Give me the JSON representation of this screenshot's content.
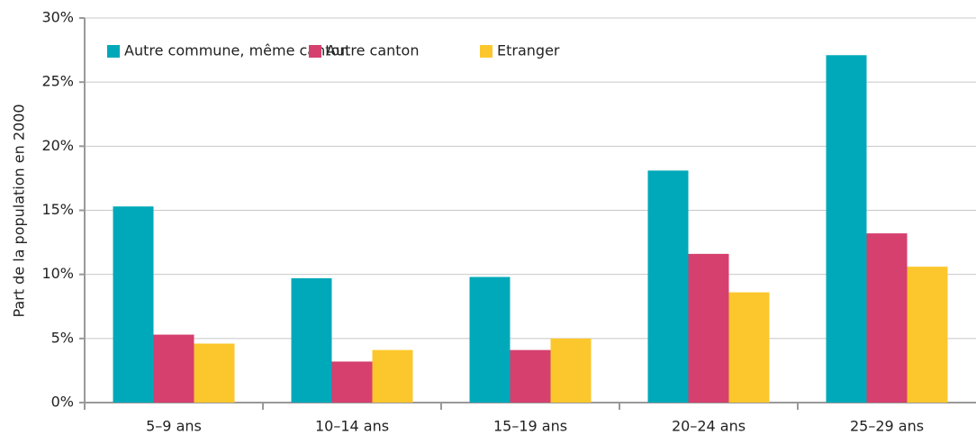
{
  "chart_data": {
    "type": "bar",
    "y_label": "Part de la population en 2000",
    "categories": [
      "5–9 ans",
      "10–14 ans",
      "15–19 ans",
      "20–24 ans",
      "25–29 ans"
    ],
    "series": [
      {
        "name": "Autre commune, même canton",
        "color": "#00a9b9",
        "values": [
          15.3,
          9.7,
          9.8,
          18.1,
          27.1
        ]
      },
      {
        "name": "Autre canton",
        "color": "#d6406e",
        "values": [
          5.3,
          3.2,
          4.1,
          11.6,
          13.2
        ]
      },
      {
        "name": "Etranger",
        "color": "#fcc72c",
        "values": [
          4.6,
          4.1,
          5.0,
          8.6,
          10.6
        ]
      }
    ],
    "ylim": [
      0,
      30
    ],
    "yticks": [
      {
        "value": 0,
        "label": "0%"
      },
      {
        "value": 5,
        "label": "5%"
      },
      {
        "value": 10,
        "label": "10%"
      },
      {
        "value": 15,
        "label": "15%"
      },
      {
        "value": 20,
        "label": "20%"
      },
      {
        "value": 25,
        "label": "25%"
      },
      {
        "value": 30,
        "label": "30%"
      }
    ],
    "grid": true,
    "legend": "top-left"
  }
}
